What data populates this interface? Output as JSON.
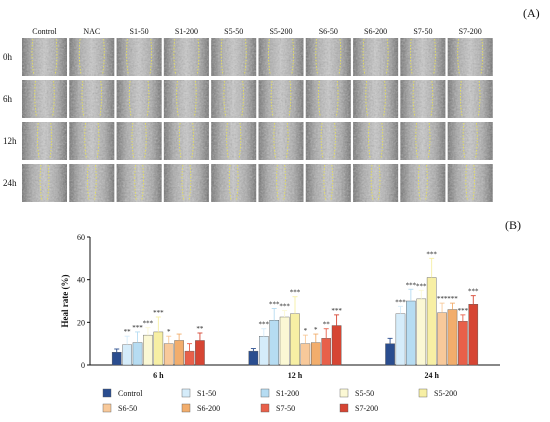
{
  "panel_a": {
    "letter": "(A)",
    "columns": [
      "Control",
      "NAC",
      "S1-50",
      "S1-200",
      "S5-50",
      "S5-200",
      "S6-50",
      "S6-200",
      "S7-50",
      "S7-200"
    ],
    "rows": [
      "0h",
      "6h",
      "12h",
      "24h"
    ]
  },
  "chart_data": {
    "type": "bar",
    "panel_letter": "(B)",
    "title": "",
    "xlabel": "",
    "ylabel": "Heal rate (%)",
    "ylim": [
      0,
      60
    ],
    "yticks": [
      0,
      20,
      40,
      60
    ],
    "categories": [
      "6 h",
      "12 h",
      "24 h"
    ],
    "grid": false,
    "legend_position": "bottom",
    "series": [
      {
        "name": "Control",
        "color": "#2a4d8f",
        "values": [
          6,
          6.5,
          10
        ],
        "errors": [
          1.5,
          1.2,
          2.5
        ],
        "stars": [
          "",
          "",
          ""
        ]
      },
      {
        "name": "S1-50",
        "color": "#d5ecfa",
        "values": [
          9.5,
          13.5,
          24
        ],
        "errors": [
          4,
          3.5,
          3.5
        ],
        "stars": [
          "**",
          "***",
          "***"
        ]
      },
      {
        "name": "S1-200",
        "color": "#b6dcf2",
        "values": [
          10.5,
          21,
          30
        ],
        "errors": [
          5,
          5.5,
          5.5
        ],
        "stars": [
          "***",
          "***",
          "***"
        ]
      },
      {
        "name": "S5-50",
        "color": "#fbf8d4",
        "values": [
          14,
          22.5,
          31
        ],
        "errors": [
          3.5,
          3,
          4
        ],
        "stars": [
          "***",
          "***",
          "***"
        ]
      },
      {
        "name": "S5-200",
        "color": "#f7efa4",
        "values": [
          15.5,
          24,
          41
        ],
        "errors": [
          7,
          8,
          9
        ],
        "stars": [
          "***",
          "***",
          "***"
        ]
      },
      {
        "name": "S6-50",
        "color": "#f8c99a",
        "values": [
          10,
          10,
          24.5
        ],
        "errors": [
          3.5,
          4,
          4.5
        ],
        "stars": [
          "*",
          "*",
          "***"
        ]
      },
      {
        "name": "S6-200",
        "color": "#f2ad6c",
        "values": [
          11.5,
          10.5,
          26
        ],
        "errors": [
          3,
          4,
          3
        ],
        "stars": [
          "",
          "*",
          "***"
        ]
      },
      {
        "name": "S7-50",
        "color": "#e8604a",
        "values": [
          6.5,
          12.5,
          20.5
        ],
        "errors": [
          3.5,
          4.5,
          3
        ],
        "stars": [
          "",
          "**",
          "***"
        ]
      },
      {
        "name": "S7-200",
        "color": "#d64533",
        "values": [
          11.5,
          18.5,
          28.5
        ],
        "errors": [
          3.5,
          5,
          4
        ],
        "stars": [
          "**",
          "***",
          "***"
        ]
      }
    ]
  }
}
